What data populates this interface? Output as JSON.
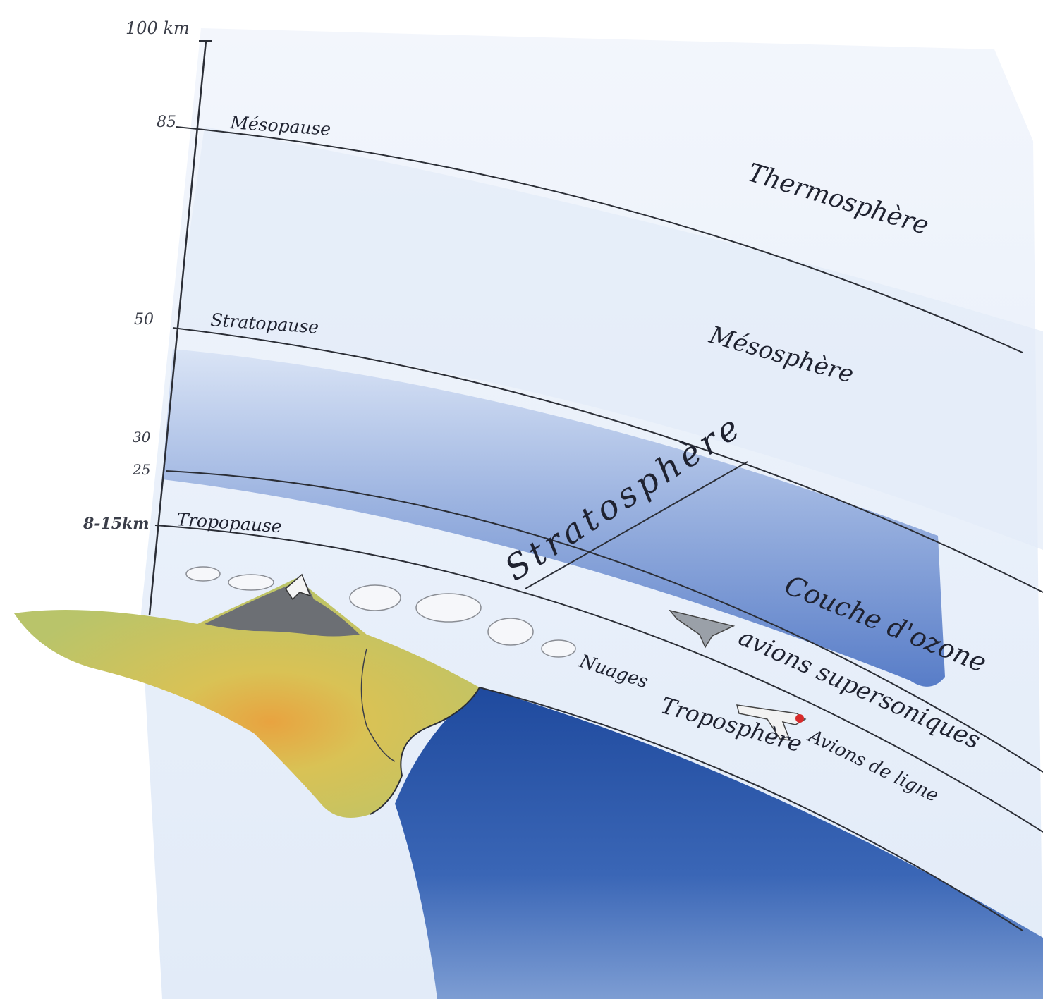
{
  "axis": {
    "top_label": "100 km",
    "ticks": [
      "85",
      "50",
      "30",
      "25",
      "8-15km"
    ]
  },
  "boundaries": {
    "mesopause": "Mésopause",
    "stratopause": "Stratopause",
    "tropopause": "Tropopause"
  },
  "layers": {
    "thermosphere": "Thermosphère",
    "mesosphere": "Mésosphère",
    "stratosphere": "Stratosphère",
    "troposphere": "Troposphère"
  },
  "features": {
    "ozone": "Couche d'ozone",
    "supersonic": "avions supersoniques",
    "airliners": "Avions de ligne",
    "clouds": "Nuages"
  },
  "colors": {
    "sky": "#eef3fb",
    "ozone": "#4a73c4",
    "ocean": "#2a56a8",
    "land": "#c9c65a",
    "lines": "#2b2e36"
  }
}
